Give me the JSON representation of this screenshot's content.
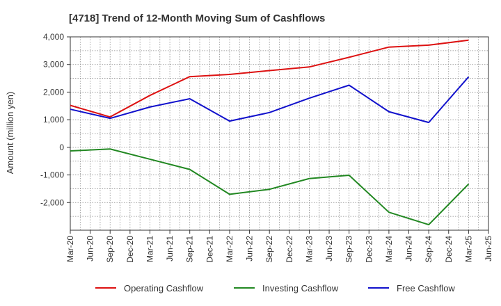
{
  "chart_data": {
    "type": "line",
    "title": "[4718]  Trend of 12-Month Moving Sum of Cashflows",
    "xlabel": "",
    "ylabel": "Amount (million yen)",
    "categories": [
      "Mar-20",
      "Jun-20",
      "Sep-20",
      "Dec-20",
      "Mar-21",
      "Jun-21",
      "Sep-21",
      "Dec-21",
      "Mar-22",
      "Jun-22",
      "Sep-22",
      "Dec-22",
      "Mar-23",
      "Jun-23",
      "Sep-23",
      "Dec-23",
      "Mar-24",
      "Jun-24",
      "Sep-24",
      "Dec-24",
      "Mar-25",
      "Jun-25"
    ],
    "ylim": [
      -3000,
      4000
    ],
    "yticks": [
      4000,
      3000,
      2000,
      1000,
      0,
      -1000,
      -2000
    ],
    "ytick_labels": [
      "4,000",
      "3,000",
      "2,000",
      "1,000",
      "0",
      "-1,000",
      "-2,000"
    ],
    "grid": true,
    "legend_position": "bottom",
    "series": [
      {
        "name": "Operating Cashflow",
        "color": "#dd1111",
        "points": [
          {
            "x": "Mar-20",
            "y": 1520
          },
          {
            "x": "Sep-20",
            "y": 1100
          },
          {
            "x": "Mar-21",
            "y": 1880
          },
          {
            "x": "Sep-21",
            "y": 2560
          },
          {
            "x": "Mar-22",
            "y": 2640
          },
          {
            "x": "Sep-22",
            "y": 2780
          },
          {
            "x": "Mar-23",
            "y": 2910
          },
          {
            "x": "Sep-23",
            "y": 3260
          },
          {
            "x": "Mar-24",
            "y": 3630
          },
          {
            "x": "Sep-24",
            "y": 3700
          },
          {
            "x": "Mar-25",
            "y": 3880
          }
        ]
      },
      {
        "name": "Investing Cashflow",
        "color": "#228822",
        "points": [
          {
            "x": "Mar-20",
            "y": -130
          },
          {
            "x": "Sep-20",
            "y": -60
          },
          {
            "x": "Mar-21",
            "y": -430
          },
          {
            "x": "Sep-21",
            "y": -800
          },
          {
            "x": "Mar-22",
            "y": -1700
          },
          {
            "x": "Sep-22",
            "y": -1520
          },
          {
            "x": "Mar-23",
            "y": -1130
          },
          {
            "x": "Sep-23",
            "y": -1010
          },
          {
            "x": "Mar-24",
            "y": -2350
          },
          {
            "x": "Sep-24",
            "y": -2800
          },
          {
            "x": "Mar-25",
            "y": -1330
          }
        ]
      },
      {
        "name": "Free Cashflow",
        "color": "#1111cc",
        "points": [
          {
            "x": "Mar-20",
            "y": 1380
          },
          {
            "x": "Sep-20",
            "y": 1050
          },
          {
            "x": "Mar-21",
            "y": 1460
          },
          {
            "x": "Sep-21",
            "y": 1760
          },
          {
            "x": "Mar-22",
            "y": 950
          },
          {
            "x": "Sep-22",
            "y": 1260
          },
          {
            "x": "Mar-23",
            "y": 1780
          },
          {
            "x": "Sep-23",
            "y": 2250
          },
          {
            "x": "Mar-24",
            "y": 1290
          },
          {
            "x": "Sep-24",
            "y": 900
          },
          {
            "x": "Mar-25",
            "y": 2550
          }
        ]
      }
    ]
  }
}
